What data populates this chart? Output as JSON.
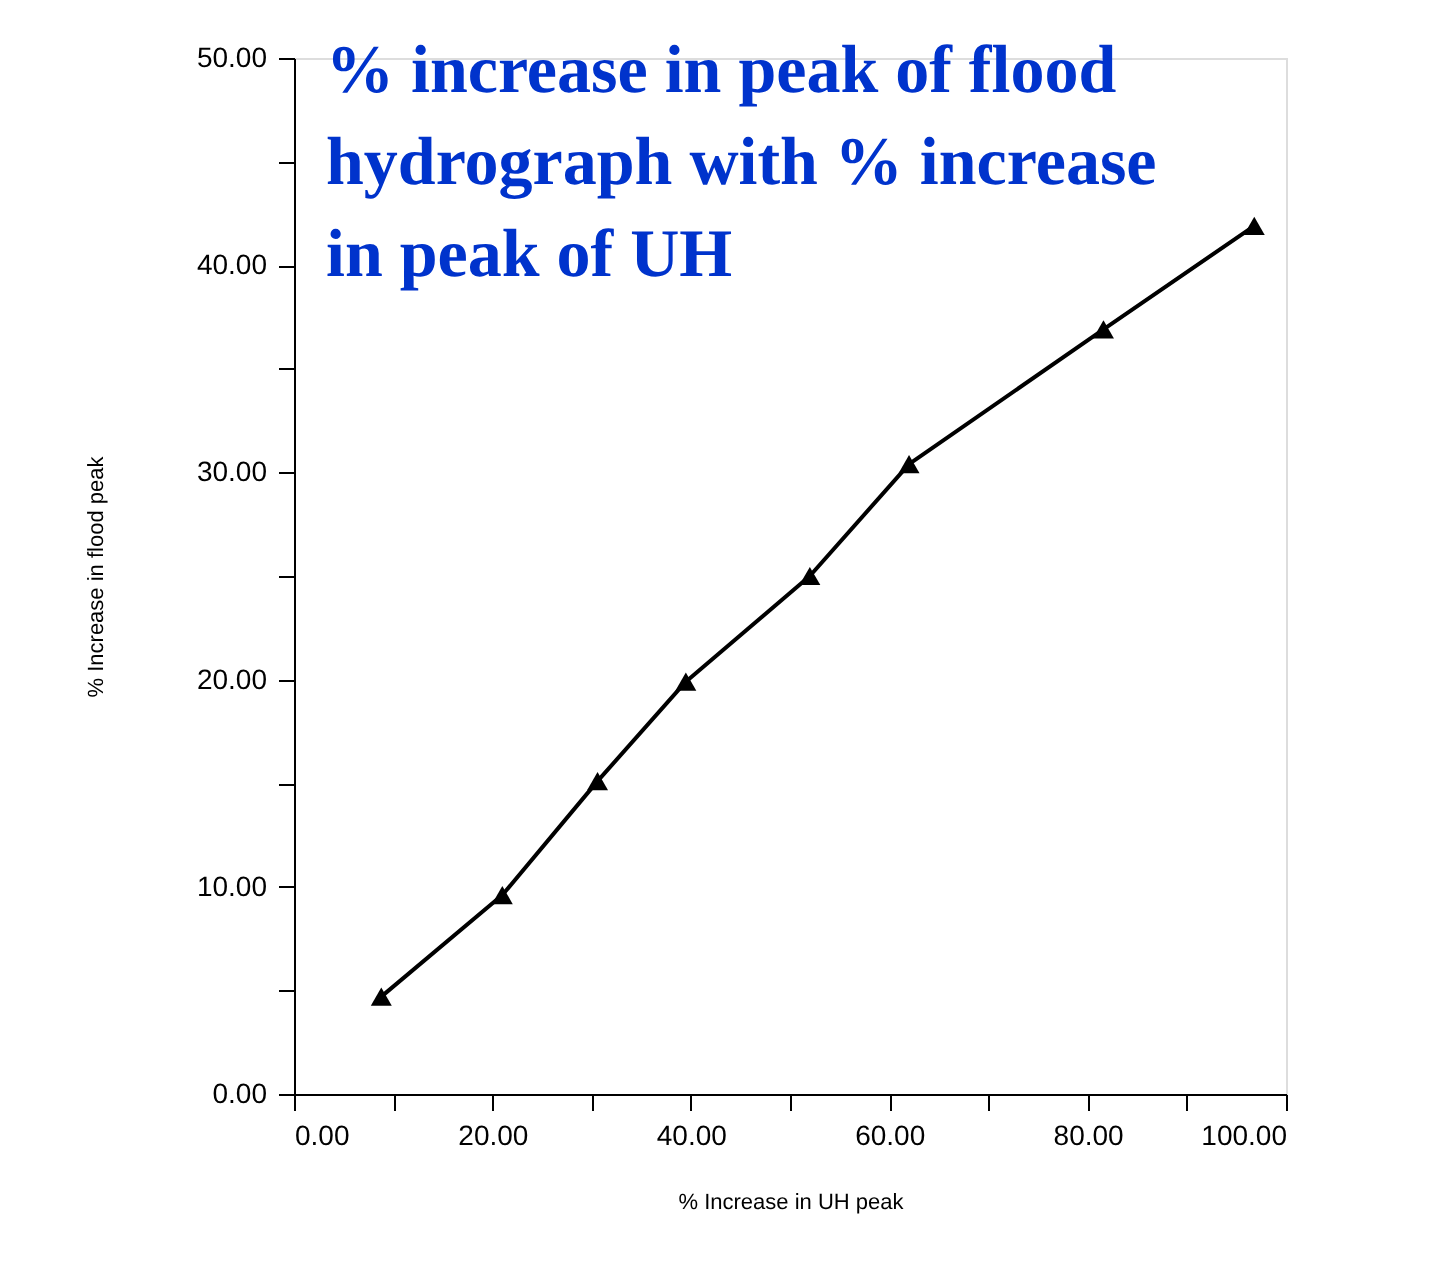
{
  "chart_data": {
    "type": "line",
    "title": "% increase in peak of flood hydrograph with % increase in peak of UH",
    "xlabel": "% Increase in UH peak",
    "ylabel": "% Increase in flood peak",
    "x": [
      8.8,
      21,
      30.6,
      39.5,
      52,
      62,
      81.6,
      96.8
    ],
    "series": [
      {
        "color": "#000000",
        "values": [
          4.7,
          9.6,
          15.1,
          19.9,
          25,
          30.4,
          36.9,
          41.9
        ]
      }
    ],
    "xlim": [
      0,
      100
    ],
    "ylim": [
      0,
      50
    ],
    "xticks": [
      {
        "value": 0,
        "label": "0.00"
      },
      {
        "value": 10,
        "label": null
      },
      {
        "value": 20,
        "label": "20.00"
      },
      {
        "value": 30,
        "label": null
      },
      {
        "value": 40,
        "label": "40.00"
      },
      {
        "value": 50,
        "label": null
      },
      {
        "value": 60,
        "label": "60.00"
      },
      {
        "value": 70,
        "label": null
      },
      {
        "value": 80,
        "label": "80.00"
      },
      {
        "value": 90,
        "label": null
      },
      {
        "value": 100,
        "label": "100.00"
      }
    ],
    "yticks": [
      {
        "value": 0,
        "label": "0.00"
      },
      {
        "value": 5,
        "label": null
      },
      {
        "value": 10,
        "label": "10.00"
      },
      {
        "value": 15,
        "label": null
      },
      {
        "value": 20,
        "label": "20.00"
      },
      {
        "value": 25,
        "label": null
      },
      {
        "value": 30,
        "label": "30.00"
      },
      {
        "value": 35,
        "label": null
      },
      {
        "value": 40,
        "label": "40.00"
      },
      {
        "value": 45,
        "label": null
      },
      {
        "value": 50,
        "label": "50.00"
      }
    ],
    "marker": "triangle",
    "line_style": "solid",
    "grid": false
  }
}
